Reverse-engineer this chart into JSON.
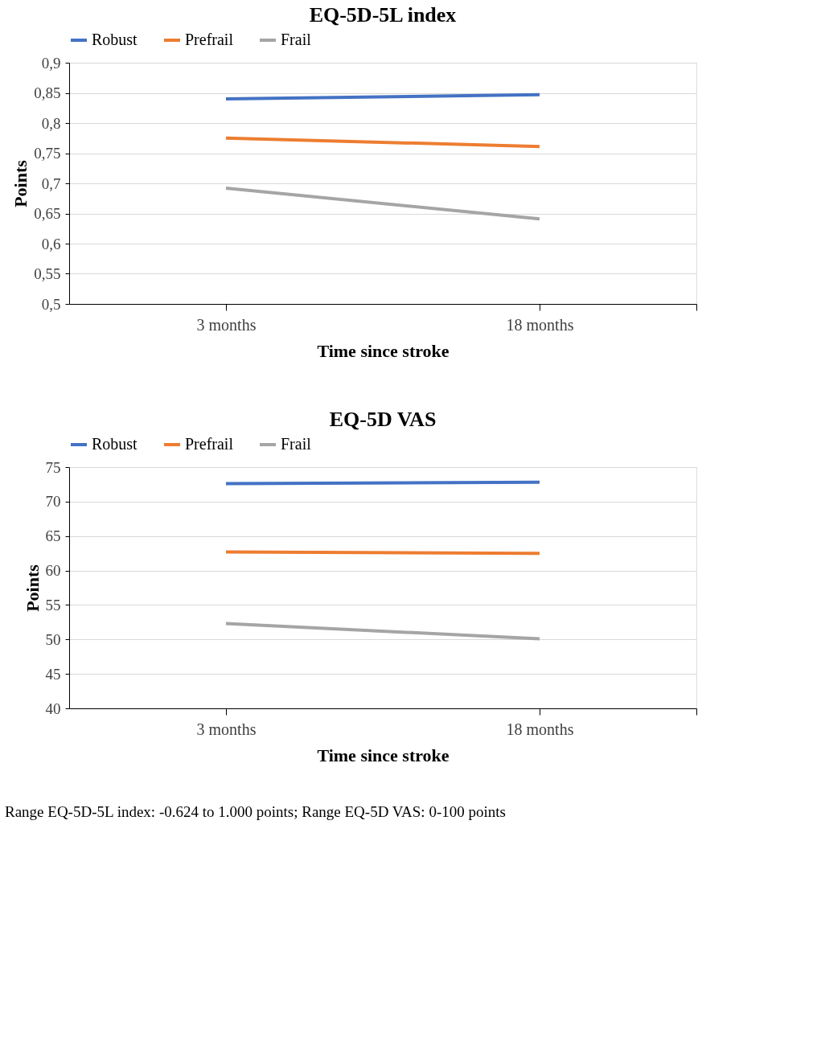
{
  "chart_data": [
    {
      "type": "line",
      "title": "EQ-5D-5L index",
      "xlabel": "Time since stroke",
      "ylabel": "Points",
      "categories": [
        "3 months",
        "18 months"
      ],
      "series": [
        {
          "name": "Robust",
          "color": "#4472c4",
          "values": [
            0.84,
            0.847
          ]
        },
        {
          "name": "Prefrail",
          "color": "#ed7d31",
          "values": [
            0.775,
            0.761
          ]
        },
        {
          "name": "Frail",
          "color": "#a5a5a5",
          "values": [
            0.692,
            0.641
          ]
        }
      ],
      "ylim": [
        0.5,
        0.9
      ],
      "yticks": [
        {
          "value": 0.5,
          "label": "0,5"
        },
        {
          "value": 0.55,
          "label": "0,55"
        },
        {
          "value": 0.6,
          "label": "0,6"
        },
        {
          "value": 0.65,
          "label": "0,65"
        },
        {
          "value": 0.7,
          "label": "0,7"
        },
        {
          "value": 0.75,
          "label": "0,75"
        },
        {
          "value": 0.8,
          "label": "0,8"
        },
        {
          "value": 0.85,
          "label": "0,85"
        },
        {
          "value": 0.9,
          "label": "0,9"
        }
      ],
      "grid": "y",
      "legend": "top left",
      "marker": "none"
    },
    {
      "type": "line",
      "title": "EQ-5D VAS",
      "xlabel": "Time since stroke",
      "ylabel": "Points",
      "categories": [
        "3 months",
        "18 months"
      ],
      "series": [
        {
          "name": "Robust",
          "color": "#4472c4",
          "values": [
            72.6,
            72.8
          ]
        },
        {
          "name": "Prefrail",
          "color": "#ed7d31",
          "values": [
            62.7,
            62.5
          ]
        },
        {
          "name": "Frail",
          "color": "#a5a5a5",
          "values": [
            52.3,
            50.1
          ]
        }
      ],
      "ylim": [
        40,
        75
      ],
      "yticks": [
        40,
        45,
        50,
        55,
        60,
        65,
        70,
        75
      ],
      "grid": "y",
      "legend": "top left",
      "marker": "none",
      "annotations": [
        "Range EQ-5D-5L index: -0.624 to 1.000 points; Range EQ-5D VAS: 0-100 points"
      ]
    }
  ]
}
